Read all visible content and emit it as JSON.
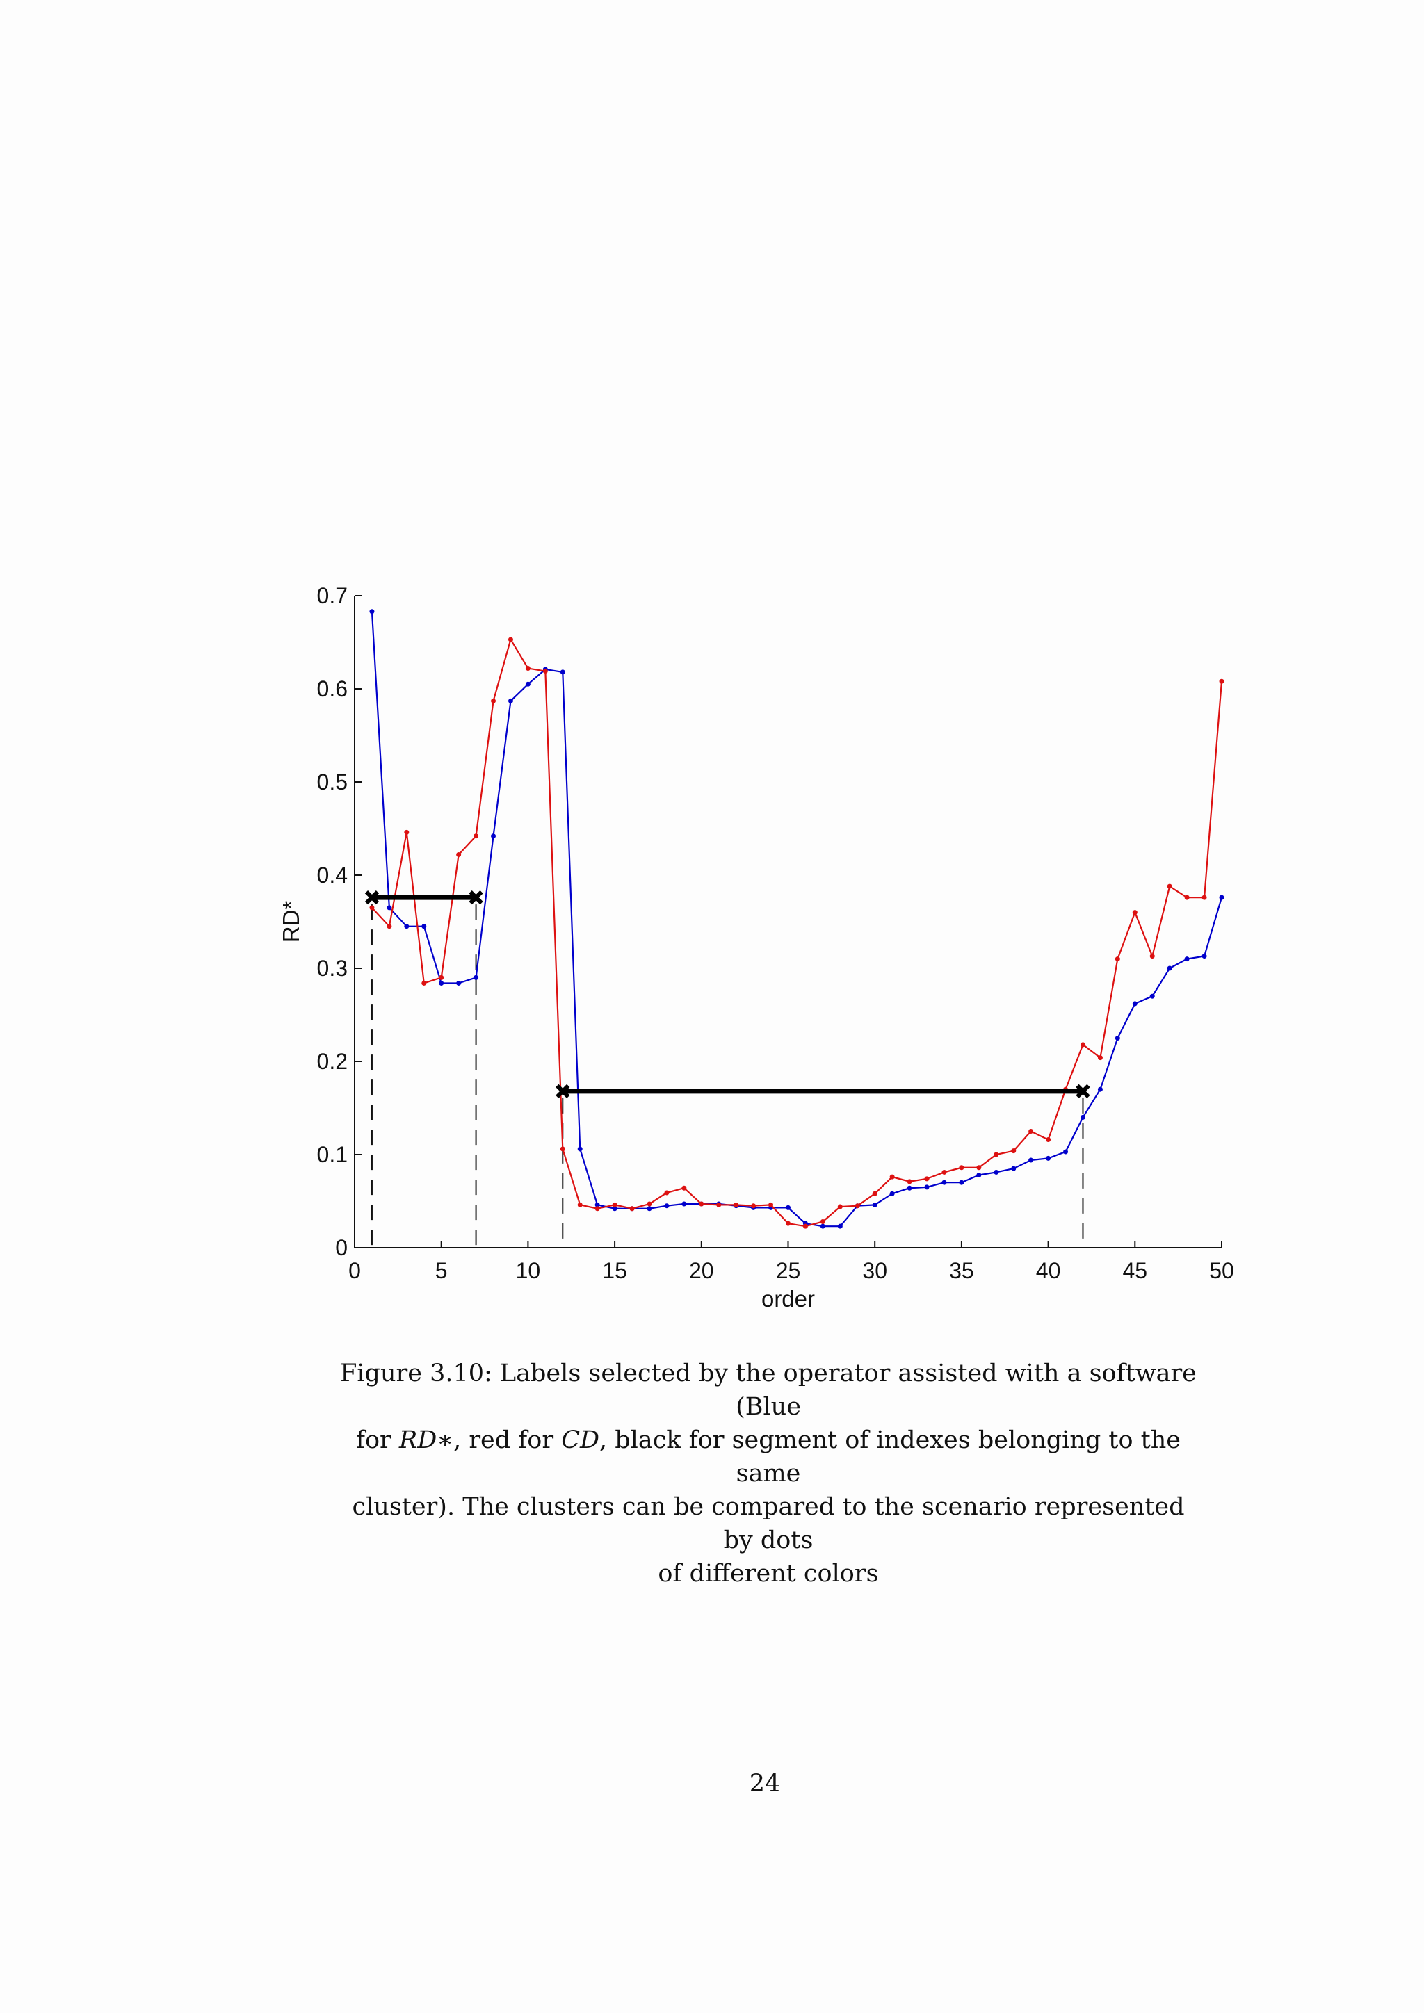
{
  "chart_data": {
    "type": "line",
    "xlabel": "order",
    "ylabel": "RD*",
    "xlim": [
      0,
      50
    ],
    "ylim": [
      0,
      0.7
    ],
    "xticks": [
      0,
      5,
      10,
      15,
      20,
      25,
      30,
      35,
      40,
      45,
      50
    ],
    "yticks": [
      0,
      0.1,
      0.2,
      0.3,
      0.4,
      0.5,
      0.6,
      0.7
    ],
    "grid": false,
    "series": [
      {
        "color": "#0000cc",
        "x": [
          1,
          2,
          3,
          4,
          5,
          6,
          7,
          8,
          9,
          10,
          11,
          12,
          13,
          14,
          15,
          16,
          17,
          18,
          19,
          20,
          21,
          22,
          23,
          24,
          25,
          26,
          27,
          28,
          29,
          30,
          31,
          32,
          33,
          34,
          35,
          36,
          37,
          38,
          39,
          40,
          41,
          42,
          43,
          44,
          45,
          46,
          47,
          48,
          49,
          50
        ],
        "y": [
          0.683,
          0.365,
          0.345,
          0.345,
          0.284,
          0.284,
          0.29,
          0.442,
          0.587,
          0.605,
          0.621,
          0.618,
          0.106,
          0.046,
          0.042,
          0.042,
          0.042,
          0.045,
          0.047,
          0.047,
          0.047,
          0.045,
          0.043,
          0.043,
          0.043,
          0.026,
          0.023,
          0.023,
          0.045,
          0.046,
          0.058,
          0.064,
          0.065,
          0.07,
          0.07,
          0.078,
          0.081,
          0.085,
          0.094,
          0.096,
          0.103,
          0.14,
          0.17,
          0.225,
          0.262,
          0.27,
          0.3,
          0.31,
          0.313,
          0.376
        ]
      },
      {
        "color": "#dd1111",
        "x": [
          1,
          2,
          3,
          4,
          5,
          6,
          7,
          8,
          9,
          10,
          11,
          12,
          13,
          14,
          15,
          16,
          17,
          18,
          19,
          20,
          21,
          22,
          23,
          24,
          25,
          26,
          27,
          28,
          29,
          30,
          31,
          32,
          33,
          34,
          35,
          36,
          37,
          38,
          39,
          40,
          41,
          42,
          43,
          44,
          45,
          46,
          47,
          48,
          49,
          50
        ],
        "y": [
          0.365,
          0.345,
          0.446,
          0.284,
          0.29,
          0.422,
          0.442,
          0.587,
          0.653,
          0.622,
          0.619,
          0.106,
          0.046,
          0.042,
          0.046,
          0.042,
          0.047,
          0.059,
          0.064,
          0.047,
          0.046,
          0.046,
          0.045,
          0.046,
          0.026,
          0.023,
          0.028,
          0.044,
          0.045,
          0.058,
          0.076,
          0.071,
          0.074,
          0.081,
          0.086,
          0.086,
          0.1,
          0.104,
          0.125,
          0.116,
          0.17,
          0.218,
          0.204,
          0.31,
          0.36,
          0.313,
          0.388,
          0.376,
          0.376,
          0.608
        ]
      }
    ],
    "segments": [
      {
        "color": "#000000",
        "x": [
          1,
          7
        ],
        "y": 0.376
      },
      {
        "color": "#000000",
        "x": [
          12,
          42
        ],
        "y": 0.168
      }
    ],
    "dashed_markers_x": [
      1,
      7,
      12,
      42
    ]
  },
  "caption": {
    "line1": "Figure 3.10: Labels selected by the operator assisted with a software (Blue",
    "line2_a": "for ",
    "line2_rd": "RD∗",
    "line2_b": ", red for ",
    "line2_cd": "CD",
    "line2_c": ", black for segment of indexes belonging to the same",
    "line3": "cluster). The clusters can be compared to the scenario represented by dots",
    "line4": "of different colors"
  },
  "page_number": "24"
}
